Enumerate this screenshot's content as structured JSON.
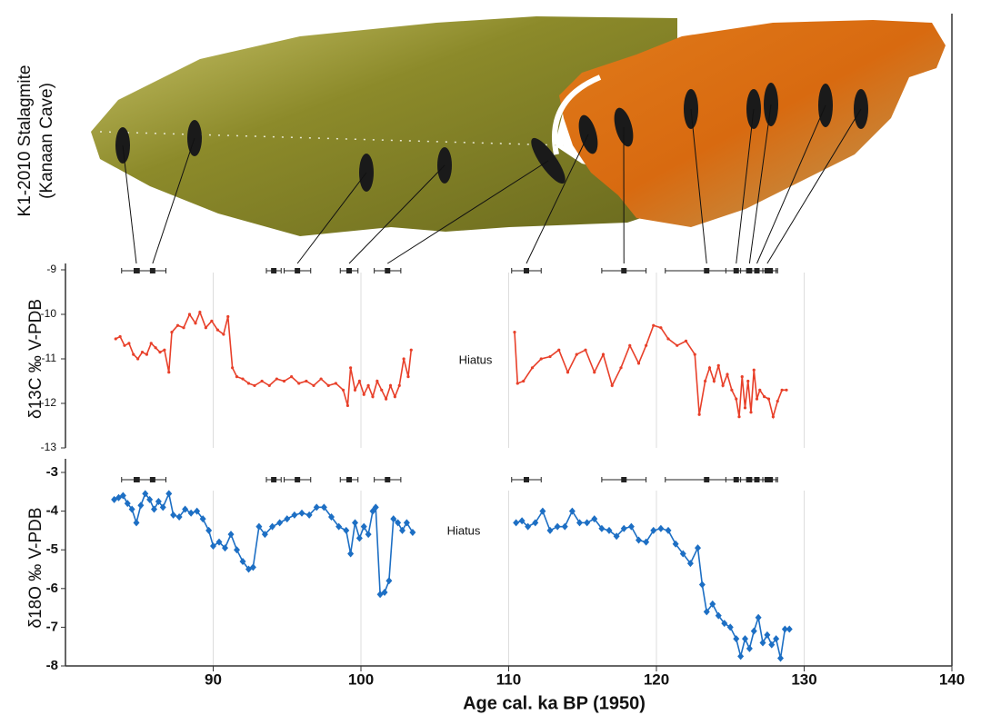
{
  "image_label": [
    "K1-2010 Stalagmite",
    "(Kanaan Cave)"
  ],
  "dates": [
    {
      "age": 84.8,
      "error": 1.0
    },
    {
      "age": 85.9,
      "error": 0.9
    },
    {
      "age": 94.1,
      "error": 0.5
    },
    {
      "age": 95.7,
      "error": 0.9
    },
    {
      "age": 99.2,
      "error": 0.6
    },
    {
      "age": 101.8,
      "error": 0.9
    },
    {
      "age": 111.2,
      "error": 1.0
    },
    {
      "age": 117.8,
      "error": 1.5
    },
    {
      "age": 123.4,
      "error": 2.8
    },
    {
      "age": 125.4,
      "error": 0.7
    },
    {
      "age": 126.3,
      "error": 0.6
    },
    {
      "age": 126.8,
      "error": 0.6
    },
    {
      "age": 127.5,
      "error": 0.6
    },
    {
      "age": 127.7,
      "error": 0.5
    }
  ],
  "chart_data": [
    {
      "type": "line",
      "y_label": "δ13C ‰ V-PDB",
      "annotation": "Hiatus",
      "marker": "dot",
      "show_xtick_labels": false,
      "xlim": [
        80,
        140
      ],
      "ylim": [
        -13,
        -9
      ],
      "yticks": [
        -9,
        -10,
        -11,
        -12,
        -13
      ],
      "xticks": [
        90,
        100,
        110,
        120,
        130,
        140
      ],
      "grid": true,
      "series": [
        {
          "color": "#e8402a",
          "x": [
            83.4,
            83.7,
            84.0,
            84.3,
            84.6,
            84.9,
            85.2,
            85.5,
            85.8,
            86.1,
            86.4,
            86.7,
            87.0,
            87.2,
            87.6,
            88.0,
            88.4,
            88.8,
            89.1,
            89.5,
            89.9,
            90.3,
            90.7,
            91.0,
            91.3,
            91.6,
            92.0,
            92.4,
            92.8,
            93.3,
            93.8,
            94.3,
            94.8,
            95.3,
            95.8,
            96.3,
            96.8,
            97.3,
            97.8,
            98.3,
            98.8,
            99.1,
            99.3,
            99.6,
            99.9,
            100.2,
            100.5,
            100.8,
            101.1,
            101.4,
            101.7,
            102.0,
            102.3,
            102.6,
            102.9,
            103.2,
            103.4,
            null,
            110.4,
            110.6,
            111.0,
            111.6,
            112.2,
            112.8,
            113.4,
            114.0,
            114.6,
            115.2,
            115.8,
            116.4,
            117.0,
            117.6,
            118.2,
            118.8,
            119.3,
            119.8,
            120.3,
            120.8,
            121.4,
            122.0,
            122.6,
            122.9,
            123.3,
            123.6,
            123.9,
            124.2,
            124.5,
            124.8,
            125.1,
            125.4,
            125.6,
            125.8,
            126.0,
            126.2,
            126.4,
            126.6,
            126.8,
            127.0,
            127.3,
            127.6,
            127.9,
            128.2,
            128.5,
            128.8
          ],
          "values": [
            -10.55,
            -10.5,
            -10.7,
            -10.65,
            -10.9,
            -11.0,
            -10.85,
            -10.9,
            -10.65,
            -10.75,
            -10.85,
            -10.8,
            -11.3,
            -10.4,
            -10.25,
            -10.3,
            -10.0,
            -10.2,
            -9.95,
            -10.3,
            -10.15,
            -10.35,
            -10.45,
            -10.05,
            -11.2,
            -11.4,
            -11.45,
            -11.55,
            -11.6,
            -11.5,
            -11.6,
            -11.45,
            -11.5,
            -11.4,
            -11.55,
            -11.5,
            -11.6,
            -11.45,
            -11.6,
            -11.55,
            -11.7,
            -12.05,
            -11.2,
            -11.7,
            -11.5,
            -11.8,
            -11.6,
            -11.85,
            -11.5,
            -11.7,
            -11.9,
            -11.6,
            -11.85,
            -11.6,
            -11.0,
            -11.4,
            -10.8,
            null,
            -10.4,
            -11.55,
            -11.5,
            -11.2,
            -11.0,
            -10.95,
            -10.8,
            -11.3,
            -10.9,
            -10.8,
            -11.3,
            -10.9,
            -11.6,
            -11.2,
            -10.7,
            -11.1,
            -10.7,
            -10.25,
            -10.3,
            -10.55,
            -10.7,
            -10.6,
            -10.9,
            -12.25,
            -11.5,
            -11.2,
            -11.5,
            -11.15,
            -11.6,
            -11.35,
            -11.7,
            -11.9,
            -12.3,
            -11.4,
            -12.1,
            -11.5,
            -12.2,
            -11.25,
            -11.9,
            -11.7,
            -11.85,
            -11.9,
            -12.3,
            -11.95,
            -11.7,
            -11.7
          ]
        }
      ]
    },
    {
      "type": "line",
      "y_label": "δ18O ‰ V-PDB",
      "x_label": "Age cal. ka BP (1950)",
      "annotation": "Hiatus",
      "marker": "diamond",
      "show_xtick_labels": true,
      "xlim": [
        80,
        140
      ],
      "ylim": [
        -8,
        -3
      ],
      "yticks": [
        -3,
        -4,
        -5,
        -6,
        -7,
        -8
      ],
      "xticks": [
        90,
        100,
        110,
        120,
        130,
        140
      ],
      "grid": true,
      "series": [
        {
          "color": "#1d6fc4",
          "x": [
            83.3,
            83.6,
            83.9,
            84.2,
            84.5,
            84.8,
            85.1,
            85.4,
            85.7,
            86.0,
            86.3,
            86.6,
            87.0,
            87.3,
            87.7,
            88.1,
            88.5,
            88.9,
            89.3,
            89.7,
            90.0,
            90.4,
            90.8,
            91.2,
            91.6,
            92.0,
            92.4,
            92.7,
            93.1,
            93.5,
            94.0,
            94.5,
            95.0,
            95.5,
            96.0,
            96.5,
            97.0,
            97.5,
            98.0,
            98.5,
            99.0,
            99.3,
            99.6,
            99.9,
            100.2,
            100.5,
            100.8,
            101.0,
            101.3,
            101.6,
            101.9,
            102.2,
            102.5,
            102.8,
            103.1,
            103.5,
            null,
            110.5,
            110.9,
            111.3,
            111.8,
            112.3,
            112.8,
            113.3,
            113.8,
            114.3,
            114.8,
            115.3,
            115.8,
            116.3,
            116.8,
            117.3,
            117.8,
            118.3,
            118.8,
            119.3,
            119.8,
            120.3,
            120.8,
            121.3,
            121.8,
            122.3,
            122.8,
            123.1,
            123.4,
            123.8,
            124.2,
            124.6,
            125.0,
            125.4,
            125.7,
            126.0,
            126.3,
            126.6,
            126.9,
            127.2,
            127.5,
            127.8,
            128.1,
            128.4,
            128.7,
            129.0
          ],
          "values": [
            -3.7,
            -3.65,
            -3.6,
            -3.8,
            -3.95,
            -4.3,
            -3.85,
            -3.55,
            -3.7,
            -3.95,
            -3.75,
            -3.9,
            -3.55,
            -4.1,
            -4.15,
            -3.95,
            -4.05,
            -4.0,
            -4.2,
            -4.5,
            -4.9,
            -4.8,
            -4.95,
            -4.6,
            -5.0,
            -5.3,
            -5.5,
            -5.45,
            -4.4,
            -4.6,
            -4.4,
            -4.3,
            -4.2,
            -4.1,
            -4.05,
            -4.1,
            -3.9,
            -3.9,
            -4.15,
            -4.4,
            -4.5,
            -5.1,
            -4.3,
            -4.7,
            -4.4,
            -4.6,
            -4.0,
            -3.9,
            -6.15,
            -6.1,
            -5.8,
            -4.2,
            -4.3,
            -4.5,
            -4.3,
            -4.55,
            null,
            -4.3,
            -4.25,
            -4.4,
            -4.3,
            -4.0,
            -4.5,
            -4.4,
            -4.4,
            -4.0,
            -4.3,
            -4.3,
            -4.2,
            -4.45,
            -4.5,
            -4.65,
            -4.45,
            -4.4,
            -4.75,
            -4.8,
            -4.5,
            -4.45,
            -4.5,
            -4.85,
            -5.1,
            -5.35,
            -4.95,
            -5.9,
            -6.6,
            -6.4,
            -6.7,
            -6.9,
            -7.0,
            -7.3,
            -7.75,
            -7.3,
            -7.55,
            -7.1,
            -6.75,
            -7.4,
            -7.2,
            -7.45,
            -7.3,
            -7.8,
            -7.05,
            -7.05
          ]
        }
      ]
    }
  ]
}
